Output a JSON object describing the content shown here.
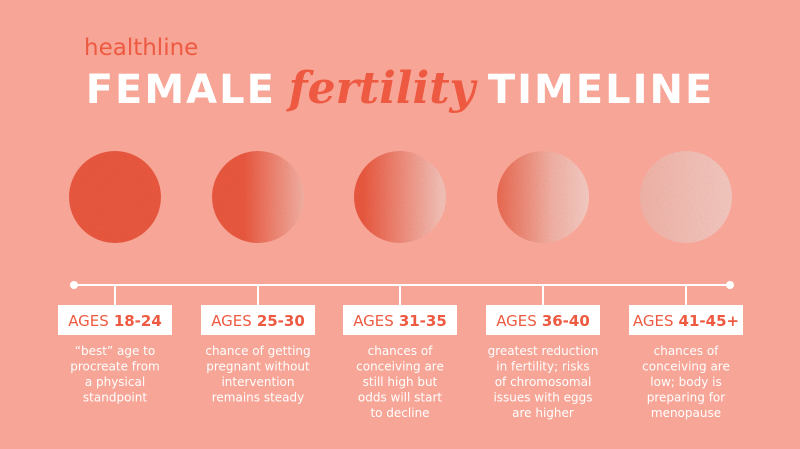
{
  "brand": "healthline",
  "title": {
    "part1": "FEMALE",
    "part2": "fertility",
    "part3": "TIMELINE"
  },
  "stages": [
    {
      "prefix": "AGES",
      "range": "18-24",
      "description": [
        "“best” age to",
        "procreate from",
        "a physical",
        "standpoint"
      ]
    },
    {
      "prefix": "AGES",
      "range": "25-30",
      "description": [
        "chance of getting",
        "pregnant without",
        "intervention",
        "remains steady"
      ]
    },
    {
      "prefix": "AGES",
      "range": "31-35",
      "description": [
        "chances of",
        "conceiving are",
        "still high but",
        "odds will start",
        "to decline"
      ]
    },
    {
      "prefix": "AGES",
      "range": "36-40",
      "description": [
        "greatest reduction",
        "in fertility; risks",
        "of chromosomal",
        "issues with eggs",
        "are higher"
      ]
    },
    {
      "prefix": "AGES",
      "range": "41-45+",
      "description": [
        "chances of",
        "conceiving are",
        "low; body is",
        "preparing for",
        "menopause"
      ]
    }
  ]
}
